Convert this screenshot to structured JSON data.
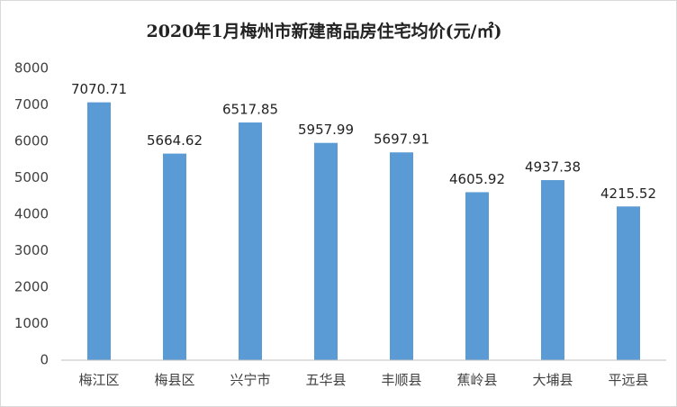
{
  "chart_data": {
    "type": "bar",
    "title": "2020年1月梅州市新建商品房住宅均价(元/㎡)",
    "categories": [
      "梅江区",
      "梅县区",
      "兴宁市",
      "五华县",
      "丰顺县",
      "蕉岭县",
      "大埔县",
      "平远县"
    ],
    "values": [
      7070.71,
      5664.62,
      6517.85,
      5957.99,
      5697.91,
      4605.92,
      4937.38,
      4215.52
    ],
    "color": "#5b9bd5",
    "ylim": [
      0,
      8000
    ],
    "yticks": [
      0,
      1000,
      2000,
      3000,
      4000,
      5000,
      6000,
      7000,
      8000
    ],
    "grid": false
  }
}
